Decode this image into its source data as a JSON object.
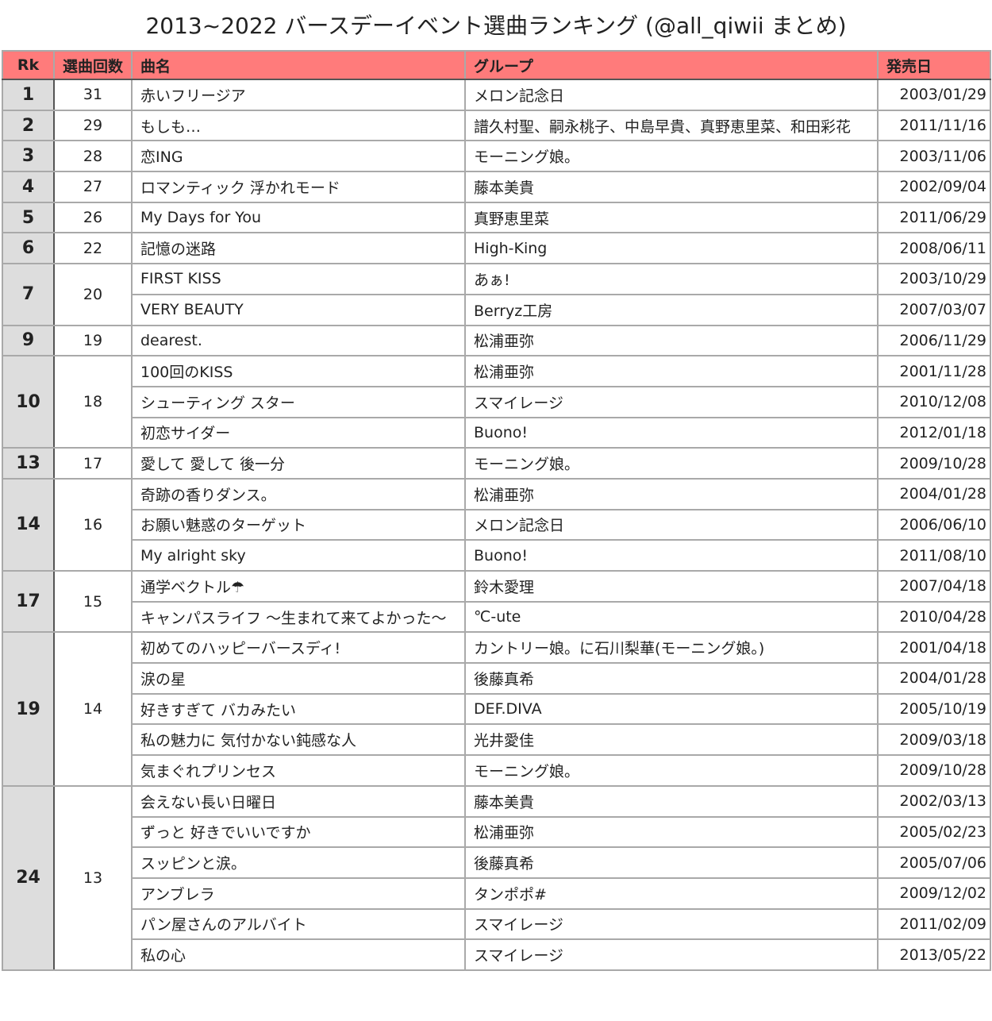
{
  "title": "2013~2022 バースデーイベント選曲ランキング (@all_qiwii まとめ)",
  "headers": {
    "rank": "Rk",
    "count": "選曲回数",
    "song": "曲名",
    "group": "グループ",
    "date": "発売日"
  },
  "colors": {
    "header": "#ff7b7b",
    "rank_bg": "#dddddd"
  },
  "ranks": [
    {
      "rank": "1",
      "count": "31",
      "songs": [
        [
          "赤いフリージア",
          "メロン記念日",
          "2003/01/29"
        ]
      ]
    },
    {
      "rank": "2",
      "count": "29",
      "songs": [
        [
          "もしも…",
          "譜久村聖、嗣永桃子、中島早貴、真野恵里菜、和田彩花",
          "2011/11/16"
        ]
      ]
    },
    {
      "rank": "3",
      "count": "28",
      "songs": [
        [
          "恋ING",
          "モーニング娘。",
          "2003/11/06"
        ]
      ]
    },
    {
      "rank": "4",
      "count": "27",
      "songs": [
        [
          "ロマンティック 浮かれモード",
          "藤本美貴",
          "2002/09/04"
        ]
      ]
    },
    {
      "rank": "5",
      "count": "26",
      "songs": [
        [
          "My Days for You",
          "真野恵里菜",
          "2011/06/29"
        ]
      ]
    },
    {
      "rank": "6",
      "count": "22",
      "songs": [
        [
          "記憶の迷路",
          "High-King",
          "2008/06/11"
        ]
      ]
    },
    {
      "rank": "7",
      "count": "20",
      "songs": [
        [
          "FIRST KISS",
          "あぁ!",
          "2003/10/29"
        ],
        [
          "VERY BEAUTY",
          "Berryz工房",
          "2007/03/07"
        ]
      ]
    },
    {
      "rank": "9",
      "count": "19",
      "songs": [
        [
          "dearest.",
          "松浦亜弥",
          "2006/11/29"
        ]
      ]
    },
    {
      "rank": "10",
      "count": "18",
      "songs": [
        [
          "100回のKISS",
          "松浦亜弥",
          "2001/11/28"
        ],
        [
          "シューティング スター",
          "スマイレージ",
          "2010/12/08"
        ],
        [
          "初恋サイダー",
          "Buono!",
          "2012/01/18"
        ]
      ]
    },
    {
      "rank": "13",
      "count": "17",
      "songs": [
        [
          "愛して 愛して 後一分",
          "モーニング娘。",
          "2009/10/28"
        ]
      ]
    },
    {
      "rank": "14",
      "count": "16",
      "songs": [
        [
          "奇跡の香りダンス。",
          "松浦亜弥",
          "2004/01/28"
        ],
        [
          "お願い魅惑のターゲット",
          "メロン記念日",
          "2006/06/10"
        ],
        [
          "My alright sky",
          "Buono!",
          "2011/08/10"
        ]
      ]
    },
    {
      "rank": "17",
      "count": "15",
      "songs": [
        [
          "通学ベクトル☂",
          "鈴木愛理",
          "2007/04/18"
        ],
        [
          "キャンパスライフ 〜生まれて来てよかった〜",
          "℃-ute",
          "2010/04/28"
        ]
      ]
    },
    {
      "rank": "19",
      "count": "14",
      "songs": [
        [
          "初めてのハッピーバースディ!",
          "カントリー娘。に石川梨華(モーニング娘。)",
          "2001/04/18"
        ],
        [
          "涙の星",
          "後藤真希",
          "2004/01/28"
        ],
        [
          "好きすぎて バカみたい",
          "DEF.DIVA",
          "2005/10/19"
        ],
        [
          "私の魅力に 気付かない鈍感な人",
          "光井愛佳",
          "2009/03/18"
        ],
        [
          "気まぐれプリンセス",
          "モーニング娘。",
          "2009/10/28"
        ]
      ]
    },
    {
      "rank": "24",
      "count": "13",
      "songs": [
        [
          "会えない長い日曜日",
          "藤本美貴",
          "2002/03/13"
        ],
        [
          "ずっと 好きでいいですか",
          "松浦亜弥",
          "2005/02/23"
        ],
        [
          "スッピンと涙。",
          "後藤真希",
          "2005/07/06"
        ],
        [
          "アンブレラ",
          "タンポポ#",
          "2009/12/02"
        ],
        [
          "パン屋さんのアルバイト",
          "スマイレージ",
          "2011/02/09"
        ],
        [
          "私の心",
          "スマイレージ",
          "2013/05/22"
        ]
      ]
    }
  ]
}
